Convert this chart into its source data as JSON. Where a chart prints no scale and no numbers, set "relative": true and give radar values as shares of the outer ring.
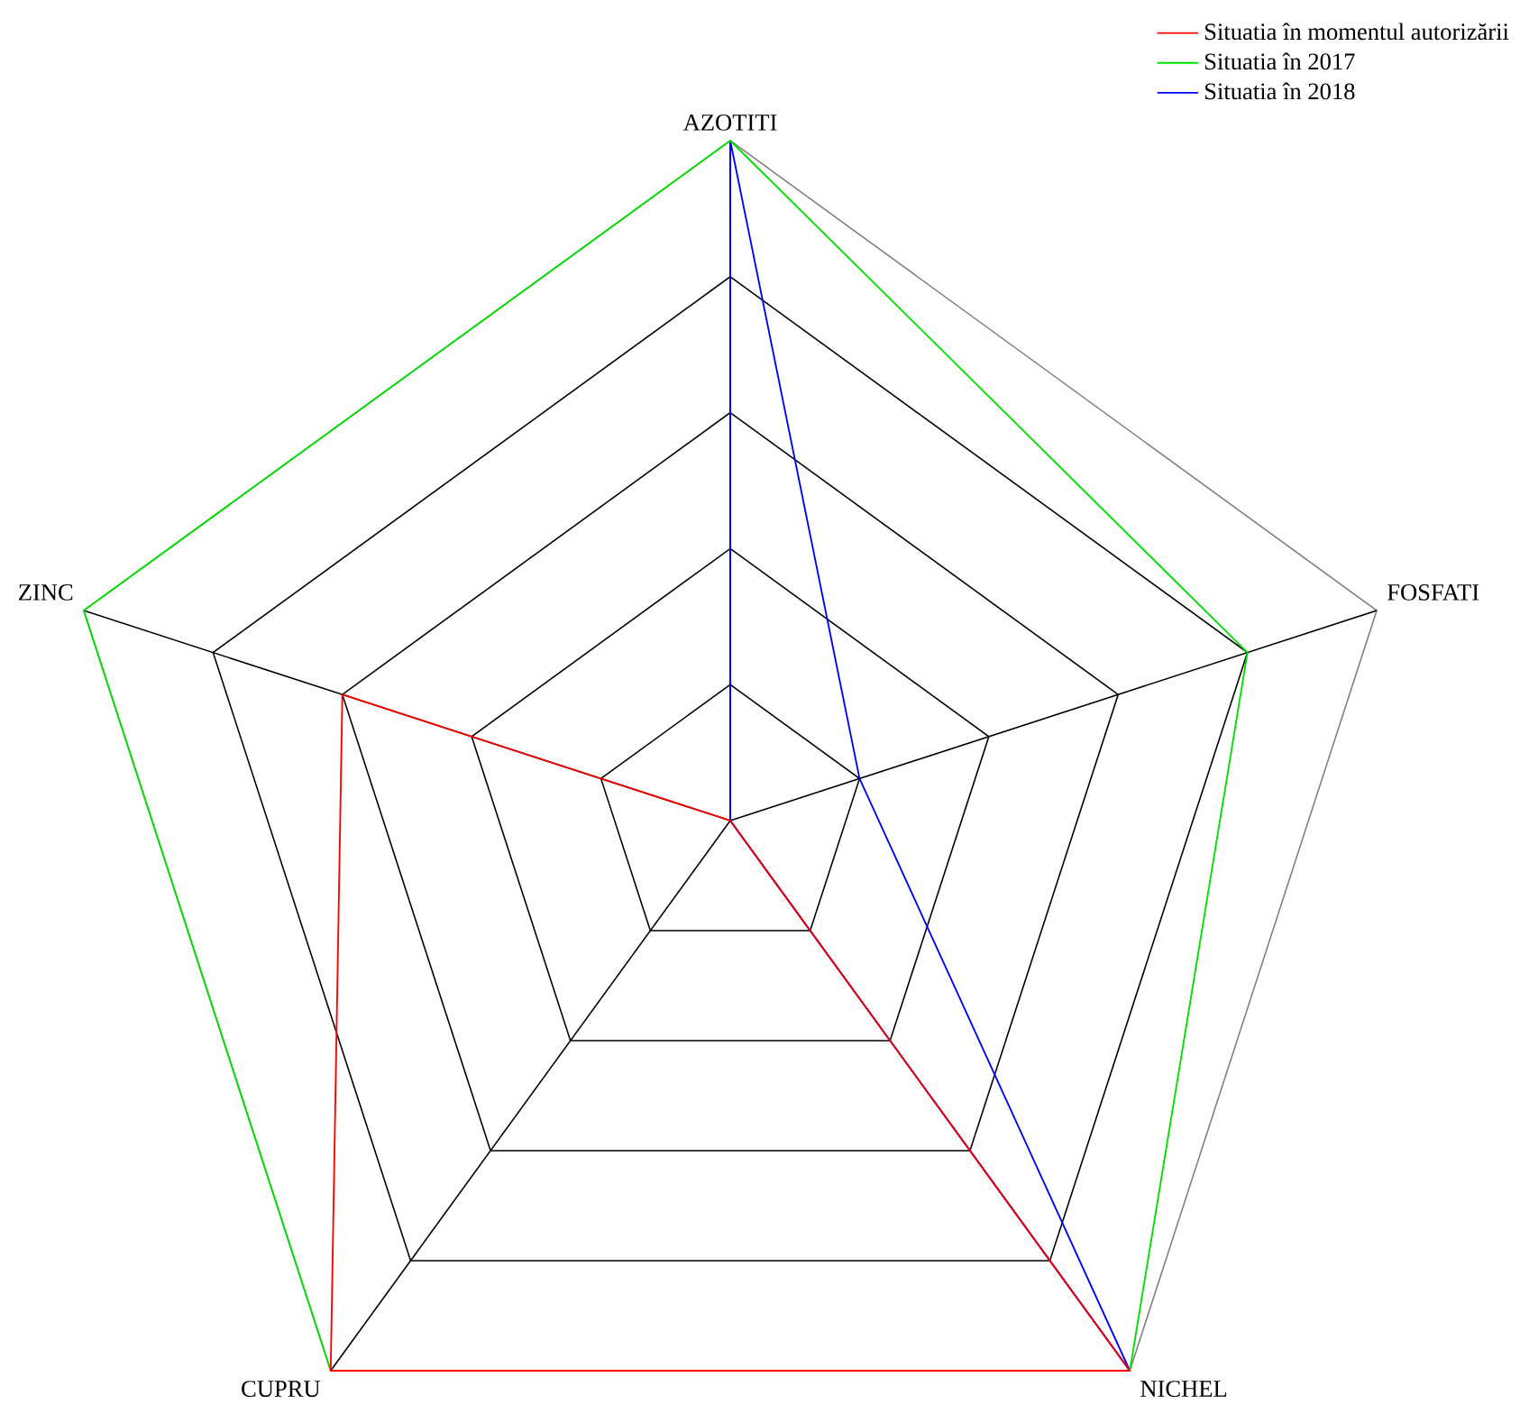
{
  "chart_data": {
    "type": "radar",
    "relative": true,
    "grid": true,
    "legend": "top right",
    "marker": "none",
    "categories": [
      "AZOTITI",
      "FOSFATI",
      "NICHEL",
      "CUPRU",
      "ZINC"
    ],
    "series": [
      {
        "name": "Situatia în momentul autorizării",
        "color": "#ff0000",
        "values": [
          0,
          0,
          1,
          1,
          0.6
        ]
      },
      {
        "name": "Situatia în 2017",
        "color": "#00e000",
        "values": [
          1,
          0.8,
          1,
          1,
          1
        ]
      },
      {
        "name": "Situatia în 2018",
        "color": "#0000ff",
        "values": [
          1,
          0.2,
          1,
          0,
          0
        ]
      }
    ]
  }
}
